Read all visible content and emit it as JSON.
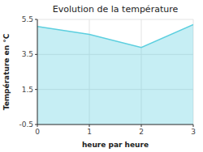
{
  "chart_data": {
    "type": "area",
    "title": "Evolution de la température",
    "xlabel": "heure par heure",
    "ylabel": "Température en °C",
    "x": [
      0,
      1,
      2,
      3
    ],
    "values": [
      5.1,
      4.65,
      3.9,
      5.2
    ],
    "xlim": [
      0,
      3
    ],
    "ylim": [
      -0.5,
      5.5
    ],
    "xticks": [
      0,
      1,
      2,
      3
    ],
    "yticks": [
      -0.5,
      1.5,
      3.5,
      5.5
    ],
    "color": "#5ccfdf",
    "grid": true
  }
}
